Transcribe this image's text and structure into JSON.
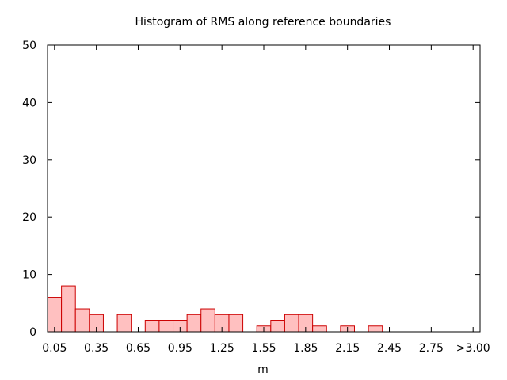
{
  "chart_data": {
    "type": "bar",
    "title": "Histogram of RMS along reference boundaries",
    "xlabel": "m",
    "ylabel": "",
    "ylim": [
      0,
      50
    ],
    "xlim": [
      0,
      3.1
    ],
    "bin_width": 0.1,
    "x_ticks": [
      {
        "value": 0.05,
        "label": "0.05"
      },
      {
        "value": 0.35,
        "label": "0.35"
      },
      {
        "value": 0.65,
        "label": "0.65"
      },
      {
        "value": 0.95,
        "label": "0.95"
      },
      {
        "value": 1.25,
        "label": "1.25"
      },
      {
        "value": 1.55,
        "label": "1.55"
      },
      {
        "value": 1.85,
        "label": "1.85"
      },
      {
        "value": 2.15,
        "label": "2.15"
      },
      {
        "value": 2.45,
        "label": "2.45"
      },
      {
        "value": 2.75,
        "label": "2.75"
      },
      {
        "value": 3.05,
        "label": ">3.00"
      }
    ],
    "y_ticks": [
      0,
      10,
      20,
      30,
      40,
      50
    ],
    "bins": [
      {
        "x": 0.05,
        "value": 6
      },
      {
        "x": 0.15,
        "value": 8
      },
      {
        "x": 0.25,
        "value": 4
      },
      {
        "x": 0.35,
        "value": 3
      },
      {
        "x": 0.45,
        "value": 0
      },
      {
        "x": 0.55,
        "value": 3
      },
      {
        "x": 0.65,
        "value": 0
      },
      {
        "x": 0.75,
        "value": 2
      },
      {
        "x": 0.85,
        "value": 2
      },
      {
        "x": 0.95,
        "value": 2
      },
      {
        "x": 1.05,
        "value": 3
      },
      {
        "x": 1.15,
        "value": 4
      },
      {
        "x": 1.25,
        "value": 3
      },
      {
        "x": 1.35,
        "value": 3
      },
      {
        "x": 1.45,
        "value": 0
      },
      {
        "x": 1.55,
        "value": 1
      },
      {
        "x": 1.65,
        "value": 2
      },
      {
        "x": 1.75,
        "value": 3
      },
      {
        "x": 1.85,
        "value": 3
      },
      {
        "x": 1.95,
        "value": 1
      },
      {
        "x": 2.05,
        "value": 0
      },
      {
        "x": 2.15,
        "value": 1
      },
      {
        "x": 2.25,
        "value": 0
      },
      {
        "x": 2.35,
        "value": 1
      },
      {
        "x": 2.45,
        "value": 0
      },
      {
        "x": 2.55,
        "value": 0
      },
      {
        "x": 2.65,
        "value": 0
      },
      {
        "x": 2.75,
        "value": 0
      },
      {
        "x": 2.85,
        "value": 0
      },
      {
        "x": 2.95,
        "value": 0
      },
      {
        "x": 3.05,
        "value": 0
      }
    ],
    "colors": {
      "bar_fill": "#ffc0c0",
      "bar_stroke": "#cc0000"
    },
    "grid": false,
    "legend": "none"
  }
}
